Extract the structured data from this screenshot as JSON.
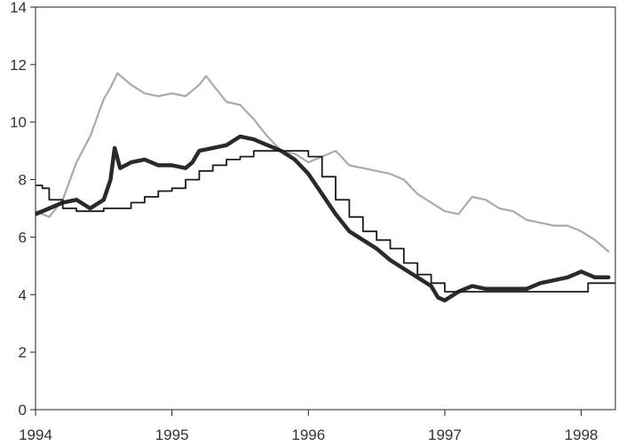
{
  "chart_data": {
    "type": "line",
    "title": "",
    "xlabel": "",
    "ylabel": "",
    "xlim": [
      1994.0,
      1998.25
    ],
    "ylim": [
      0,
      14
    ],
    "x_ticks": [
      1994,
      1995,
      1996,
      1997,
      1998
    ],
    "x_tick_labels": [
      "1994",
      "1995",
      "1996",
      "1997",
      "1998"
    ],
    "y_ticks": [
      0,
      2,
      4,
      6,
      8,
      10,
      12,
      14
    ],
    "y_tick_labels": [
      "0",
      "2",
      "4",
      "6",
      "8",
      "10",
      "12",
      "14"
    ],
    "grid": false,
    "legend": "none",
    "series": [
      {
        "color": "#aaaaaa",
        "style": "thin-noisy",
        "x": [
          1994.0,
          1994.1,
          1994.2,
          1994.3,
          1994.4,
          1994.5,
          1994.55,
          1994.6,
          1994.7,
          1994.8,
          1994.9,
          1995.0,
          1995.1,
          1995.2,
          1995.25,
          1995.3,
          1995.4,
          1995.5,
          1995.6,
          1995.7,
          1995.8,
          1995.9,
          1996.0,
          1996.1,
          1996.2,
          1996.3,
          1996.4,
          1996.5,
          1996.6,
          1996.7,
          1996.8,
          1996.9,
          1997.0,
          1997.1,
          1997.2,
          1997.3,
          1997.4,
          1997.5,
          1997.6,
          1997.7,
          1997.8,
          1997.9,
          1998.0,
          1998.1,
          1998.2
        ],
        "y": [
          6.9,
          6.7,
          7.3,
          8.6,
          9.5,
          10.8,
          11.2,
          11.7,
          11.3,
          11.0,
          10.9,
          11.0,
          10.9,
          11.3,
          11.6,
          11.3,
          10.7,
          10.6,
          10.1,
          9.5,
          9.0,
          8.9,
          8.6,
          8.8,
          9.0,
          8.5,
          8.4,
          8.3,
          8.2,
          8.0,
          7.5,
          7.2,
          6.9,
          6.8,
          7.4,
          7.3,
          7.0,
          6.9,
          6.6,
          6.5,
          6.4,
          6.4,
          6.2,
          5.9,
          5.5
        ]
      },
      {
        "color": "#2a2a2a",
        "style": "thick",
        "x": [
          1994.0,
          1994.1,
          1994.2,
          1994.3,
          1994.4,
          1994.5,
          1994.55,
          1994.58,
          1994.62,
          1994.7,
          1994.8,
          1994.9,
          1995.0,
          1995.1,
          1995.15,
          1995.2,
          1995.3,
          1995.4,
          1995.5,
          1995.6,
          1995.7,
          1995.8,
          1995.9,
          1996.0,
          1996.1,
          1996.2,
          1996.3,
          1996.4,
          1996.5,
          1996.6,
          1996.7,
          1996.8,
          1996.9,
          1996.95,
          1997.0,
          1997.1,
          1997.2,
          1997.3,
          1997.4,
          1997.5,
          1997.6,
          1997.7,
          1997.8,
          1997.9,
          1998.0,
          1998.1,
          1998.2
        ],
        "y": [
          6.8,
          7.0,
          7.2,
          7.3,
          7.0,
          7.3,
          8.0,
          9.1,
          8.4,
          8.6,
          8.7,
          8.5,
          8.5,
          8.4,
          8.6,
          9.0,
          9.1,
          9.2,
          9.5,
          9.4,
          9.2,
          9.0,
          8.7,
          8.2,
          7.5,
          6.8,
          6.2,
          5.9,
          5.6,
          5.2,
          4.9,
          4.6,
          4.3,
          3.9,
          3.8,
          4.1,
          4.3,
          4.2,
          4.2,
          4.2,
          4.2,
          4.4,
          4.5,
          4.6,
          4.8,
          4.6,
          4.6
        ]
      },
      {
        "color": "#1a1a1a",
        "style": "step",
        "x": [
          1994.0,
          1994.05,
          1994.1,
          1994.2,
          1994.3,
          1994.4,
          1994.5,
          1994.6,
          1994.7,
          1994.8,
          1994.9,
          1995.0,
          1995.1,
          1995.2,
          1995.3,
          1995.4,
          1995.5,
          1995.6,
          1995.7,
          1995.8,
          1995.9,
          1996.0,
          1996.1,
          1996.2,
          1996.3,
          1996.4,
          1996.5,
          1996.6,
          1996.7,
          1996.8,
          1996.9,
          1997.0,
          1997.5,
          1998.0,
          1998.05,
          1998.2
        ],
        "y": [
          7.8,
          7.7,
          7.3,
          7.0,
          6.9,
          6.9,
          7.0,
          7.0,
          7.2,
          7.4,
          7.6,
          7.7,
          8.0,
          8.3,
          8.5,
          8.7,
          8.8,
          9.0,
          9.0,
          9.0,
          9.0,
          8.8,
          8.1,
          7.3,
          6.7,
          6.2,
          5.9,
          5.6,
          5.1,
          4.7,
          4.4,
          4.1,
          4.1,
          4.1,
          4.4,
          4.4
        ]
      }
    ]
  }
}
